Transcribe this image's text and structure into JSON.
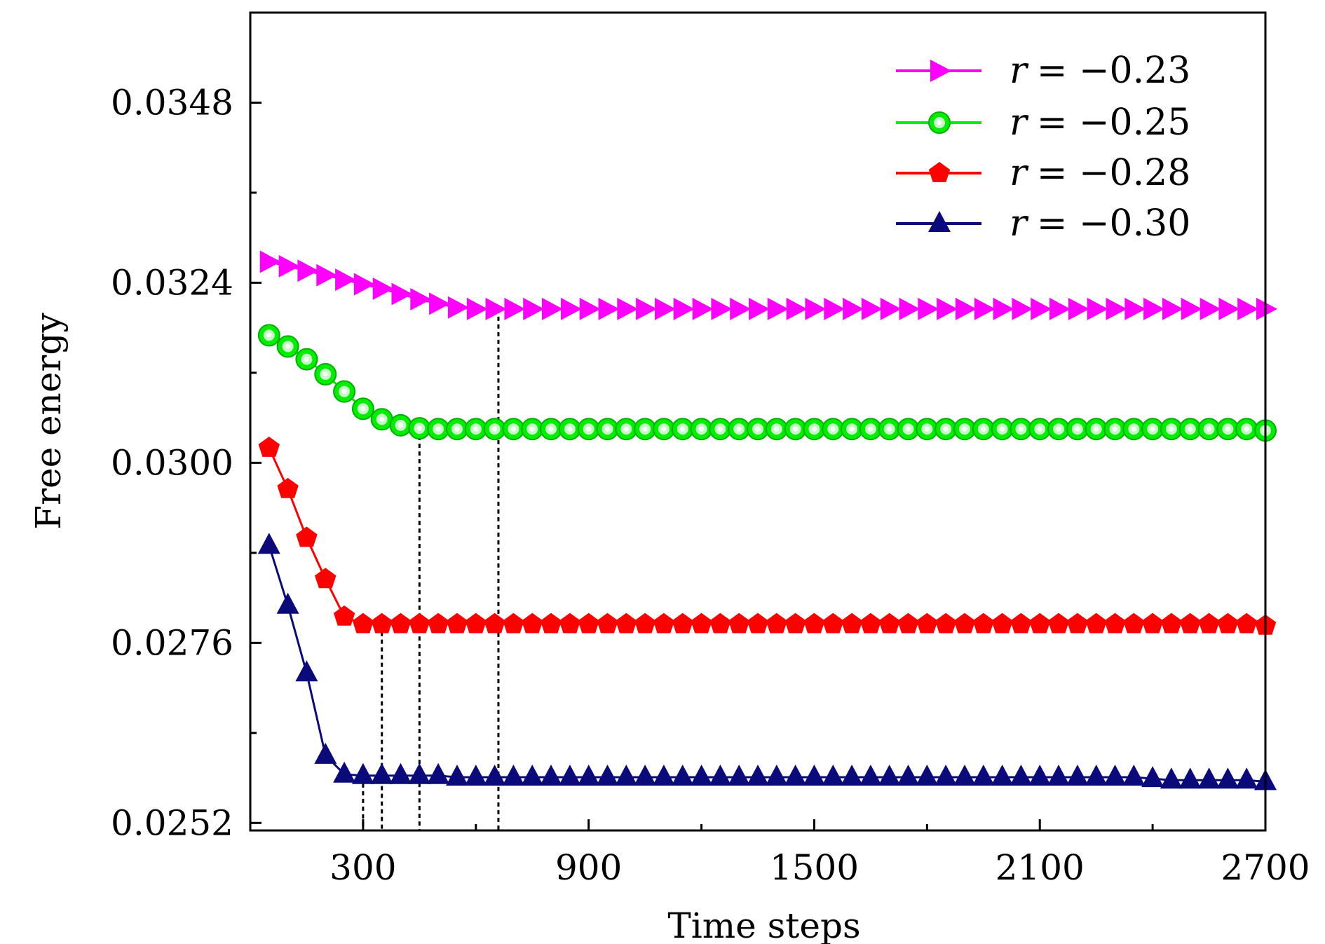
{
  "chart_data": {
    "type": "line",
    "title": "",
    "xlabel": "Time steps",
    "ylabel": "Free energy",
    "xlim": [
      0,
      2700
    ],
    "ylim": [
      0.0251,
      0.036
    ],
    "xticks": [
      300,
      900,
      1500,
      2100,
      2700
    ],
    "xtick_labels": [
      "300",
      "900",
      "1500",
      "2100",
      "2700"
    ],
    "xminor_ticks": [
      600,
      1200,
      1800,
      2400
    ],
    "yticks": [
      0.0252,
      0.0276,
      0.03,
      0.0324,
      0.0348
    ],
    "ytick_labels": [
      "0.0252",
      "0.0276",
      "0.0300",
      "0.0324",
      "0.0348"
    ],
    "yminor_ticks": [
      0.0264,
      0.0288,
      0.0312,
      0.0336
    ],
    "legend_position": "top-right",
    "x": [
      50,
      100,
      150,
      200,
      250,
      300,
      350,
      400,
      450,
      500,
      550,
      600,
      650,
      700,
      750,
      800,
      850,
      900,
      950,
      1000,
      1050,
      1100,
      1150,
      1200,
      1250,
      1300,
      1350,
      1400,
      1450,
      1500,
      1550,
      1600,
      1650,
      1700,
      1750,
      1800,
      1850,
      1900,
      1950,
      2000,
      2050,
      2100,
      2150,
      2200,
      2250,
      2300,
      2350,
      2400,
      2450,
      2500,
      2550,
      2600,
      2650,
      2700
    ],
    "series": [
      {
        "name": "r = -0.23",
        "legend_prefix": "r",
        "legend_value": "= −0.23",
        "color": "#ff00ff",
        "marker": "triangle-right",
        "values": [
          0.03268,
          0.03262,
          0.03256,
          0.0325,
          0.03244,
          0.03238,
          0.03232,
          0.03225,
          0.03218,
          0.03212,
          0.03207,
          0.03205,
          0.03205,
          0.03205,
          0.03205,
          0.03205,
          0.03205,
          0.03205,
          0.03205,
          0.03205,
          0.03205,
          0.03205,
          0.03205,
          0.03205,
          0.03205,
          0.03205,
          0.03205,
          0.03205,
          0.03205,
          0.03205,
          0.03205,
          0.03205,
          0.03205,
          0.03205,
          0.03205,
          0.03205,
          0.03205,
          0.03205,
          0.03205,
          0.03205,
          0.03205,
          0.03205,
          0.03205,
          0.03205,
          0.03205,
          0.03205,
          0.03205,
          0.03205,
          0.03205,
          0.03205,
          0.03205,
          0.03205,
          0.03205,
          0.03205
        ]
      },
      {
        "name": "r = -0.25",
        "legend_prefix": "r",
        "legend_value": "= −0.25",
        "color": "#00ee00",
        "marker": "circle",
        "values": [
          0.0317,
          0.03155,
          0.03138,
          0.03118,
          0.03095,
          0.03072,
          0.03058,
          0.0305,
          0.03046,
          0.03045,
          0.03045,
          0.03045,
          0.03045,
          0.03045,
          0.03045,
          0.03045,
          0.03045,
          0.03045,
          0.03045,
          0.03045,
          0.03045,
          0.03045,
          0.03045,
          0.03045,
          0.03045,
          0.03045,
          0.03045,
          0.03045,
          0.03045,
          0.03045,
          0.03045,
          0.03045,
          0.03045,
          0.03045,
          0.03045,
          0.03045,
          0.03045,
          0.03045,
          0.03045,
          0.03045,
          0.03045,
          0.03045,
          0.03045,
          0.03045,
          0.03045,
          0.03045,
          0.03045,
          0.03045,
          0.03045,
          0.03045,
          0.03045,
          0.03045,
          0.03045,
          0.03043
        ]
      },
      {
        "name": "r = -0.28",
        "legend_prefix": "r",
        "legend_value": "= −0.28",
        "color": "#ff0000",
        "marker": "pentagon",
        "values": [
          0.0302,
          0.02965,
          0.029,
          0.02845,
          0.02795,
          0.02785,
          0.02785,
          0.02785,
          0.02785,
          0.02785,
          0.02785,
          0.02785,
          0.02785,
          0.02785,
          0.02785,
          0.02785,
          0.02785,
          0.02785,
          0.02785,
          0.02785,
          0.02785,
          0.02785,
          0.02785,
          0.02785,
          0.02785,
          0.02785,
          0.02785,
          0.02785,
          0.02785,
          0.02785,
          0.02785,
          0.02785,
          0.02785,
          0.02785,
          0.02785,
          0.02785,
          0.02785,
          0.02785,
          0.02785,
          0.02785,
          0.02785,
          0.02785,
          0.02785,
          0.02785,
          0.02785,
          0.02785,
          0.02785,
          0.02785,
          0.02785,
          0.02785,
          0.02785,
          0.02785,
          0.02785,
          0.02783
        ]
      },
      {
        "name": "r = -0.30",
        "legend_prefix": "r",
        "legend_value": "= −0.30",
        "color": "#0a0a7a",
        "marker": "triangle-up",
        "values": [
          0.0289,
          0.0281,
          0.0272,
          0.0261,
          0.02585,
          0.02583,
          0.02583,
          0.02583,
          0.02583,
          0.02583,
          0.02581,
          0.02581,
          0.02581,
          0.02581,
          0.02581,
          0.02581,
          0.02581,
          0.02581,
          0.02581,
          0.02581,
          0.02581,
          0.02581,
          0.02581,
          0.02581,
          0.02581,
          0.02581,
          0.02581,
          0.02581,
          0.02581,
          0.02581,
          0.02581,
          0.02581,
          0.02581,
          0.02581,
          0.02581,
          0.02581,
          0.02581,
          0.02581,
          0.02581,
          0.02581,
          0.02581,
          0.02581,
          0.02581,
          0.02581,
          0.02581,
          0.02581,
          0.02581,
          0.02579,
          0.02577,
          0.02577,
          0.02577,
          0.02577,
          0.02577,
          0.02575
        ]
      }
    ],
    "convergence_markers": [
      {
        "x": 300,
        "y": 0.02583
      },
      {
        "x": 350,
        "y": 0.02785
      },
      {
        "x": 450,
        "y": 0.03046
      },
      {
        "x": 660,
        "y": 0.03205
      }
    ]
  }
}
